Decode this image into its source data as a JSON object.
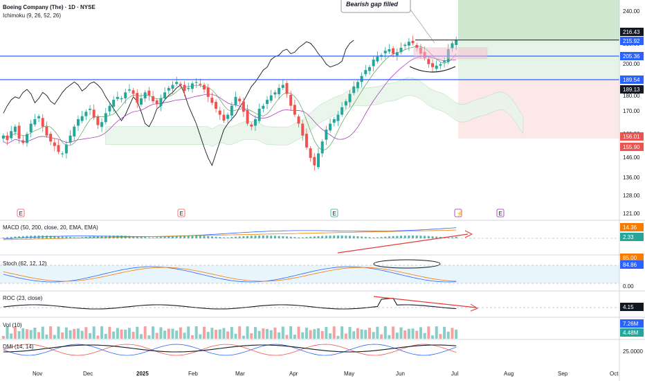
{
  "header": {
    "symbol": "Boeing Company (The) · 1D · NYSE",
    "indicator": "Ichimoku (9, 26, 52, 26)"
  },
  "annotation": {
    "text": "Bearish gap filled"
  },
  "panes": {
    "macd": "MACD (50, 200, close, 20, EMA, EMA)",
    "stoch": "Stoch (62, 12, 12)",
    "roc": "ROC (23, close)",
    "vol": "Vol (10)",
    "dmi": "DMI (14, 14)"
  },
  "colors": {
    "up": "#26a69a",
    "down": "#ef5350",
    "hline": "#2962ff",
    "long": "#c8e6c9",
    "short": "#fde2e2",
    "price": "#2962ff",
    "dark": "#131722"
  },
  "chart_data": {
    "type": "candlestick",
    "price_ticks": [
      "240.00",
      "220.00",
      "210.00",
      "200.00",
      "180.00",
      "170.00",
      "160.00",
      "146.00",
      "136.00",
      "128.00",
      "121.00"
    ],
    "x_ticks": [
      "Nov",
      "Dec",
      "2025",
      "Feb",
      "Mar",
      "Apr",
      "May",
      "Jun",
      "Jul",
      "Aug",
      "Sep",
      "Oct"
    ],
    "levels": [
      205.36,
      189.54
    ],
    "price_tags": [
      {
        "text": "216.43",
        "color": "#131722"
      },
      {
        "text": "215.92",
        "color": "#2962ff"
      },
      {
        "text": "205.36",
        "color": "#2962ff"
      },
      {
        "text": "189.54",
        "color": "#2962ff"
      },
      {
        "text": "189.13",
        "color": "#131722"
      },
      {
        "text": "156.01",
        "color": "#ef5350"
      },
      {
        "text": "155.90",
        "color": "#ef5350"
      }
    ],
    "macd_tags": [
      {
        "text": "14.36",
        "color": "#f57c00"
      },
      {
        "text": "2.33",
        "color": "#26a69a"
      }
    ],
    "macd_ticks": [
      "25.00"
    ],
    "stoch_tags": [
      {
        "text": "85.00",
        "color": "#f57c00"
      },
      {
        "text": "84.86",
        "color": "#2962ff"
      }
    ],
    "stoch_ticks": [
      "0.00"
    ],
    "roc_tags": [
      {
        "text": "4.15",
        "color": "#131722"
      }
    ],
    "vol_tags": [
      {
        "text": "7.26M",
        "color": "#2962ff"
      },
      {
        "text": "4.48M",
        "color": "#26a69a"
      }
    ],
    "dmi_ticks": [
      "25.0000"
    ],
    "events": [
      "E",
      "E",
      "E",
      "⚡",
      "E"
    ],
    "close_series": [
      152,
      149,
      155,
      158,
      150,
      147,
      153,
      160,
      163,
      165,
      158,
      152,
      148,
      145,
      141,
      140,
      146,
      152,
      158,
      163,
      165,
      168,
      170,
      164,
      159,
      161,
      167,
      172,
      176,
      178,
      177,
      181,
      183,
      180,
      174,
      177,
      181,
      179,
      175,
      173,
      177,
      181,
      184,
      186,
      188,
      186,
      182,
      184,
      187,
      188,
      186,
      183,
      178,
      174,
      170,
      166,
      162,
      166,
      172,
      178,
      175,
      168,
      160,
      158,
      163,
      170,
      172,
      176,
      179,
      181,
      184,
      186,
      180,
      172,
      166,
      160,
      152,
      144,
      137,
      132,
      140,
      148,
      156,
      160,
      163,
      166,
      171,
      175,
      180,
      185,
      188,
      192,
      196,
      198,
      203,
      205,
      206,
      209,
      210,
      207,
      208,
      211,
      213,
      215,
      214,
      211,
      207,
      204,
      200,
      198,
      199,
      200,
      202,
      210,
      214,
      216
    ]
  }
}
